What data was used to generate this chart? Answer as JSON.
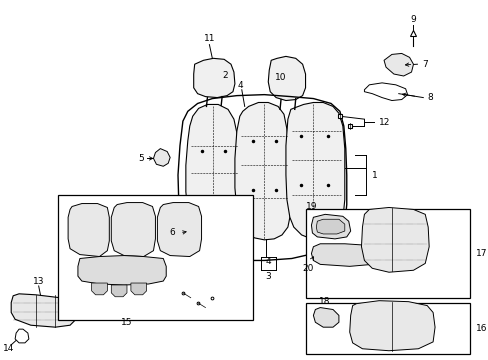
{
  "bg": "#ffffff",
  "lc": "#000000",
  "seat_back_color": "#f5f5f5",
  "seat_cushion_color": "#eeeeee",
  "component_color": "#e8e8e8",
  "fig_w": 4.89,
  "fig_h": 3.6,
  "dpi": 100
}
